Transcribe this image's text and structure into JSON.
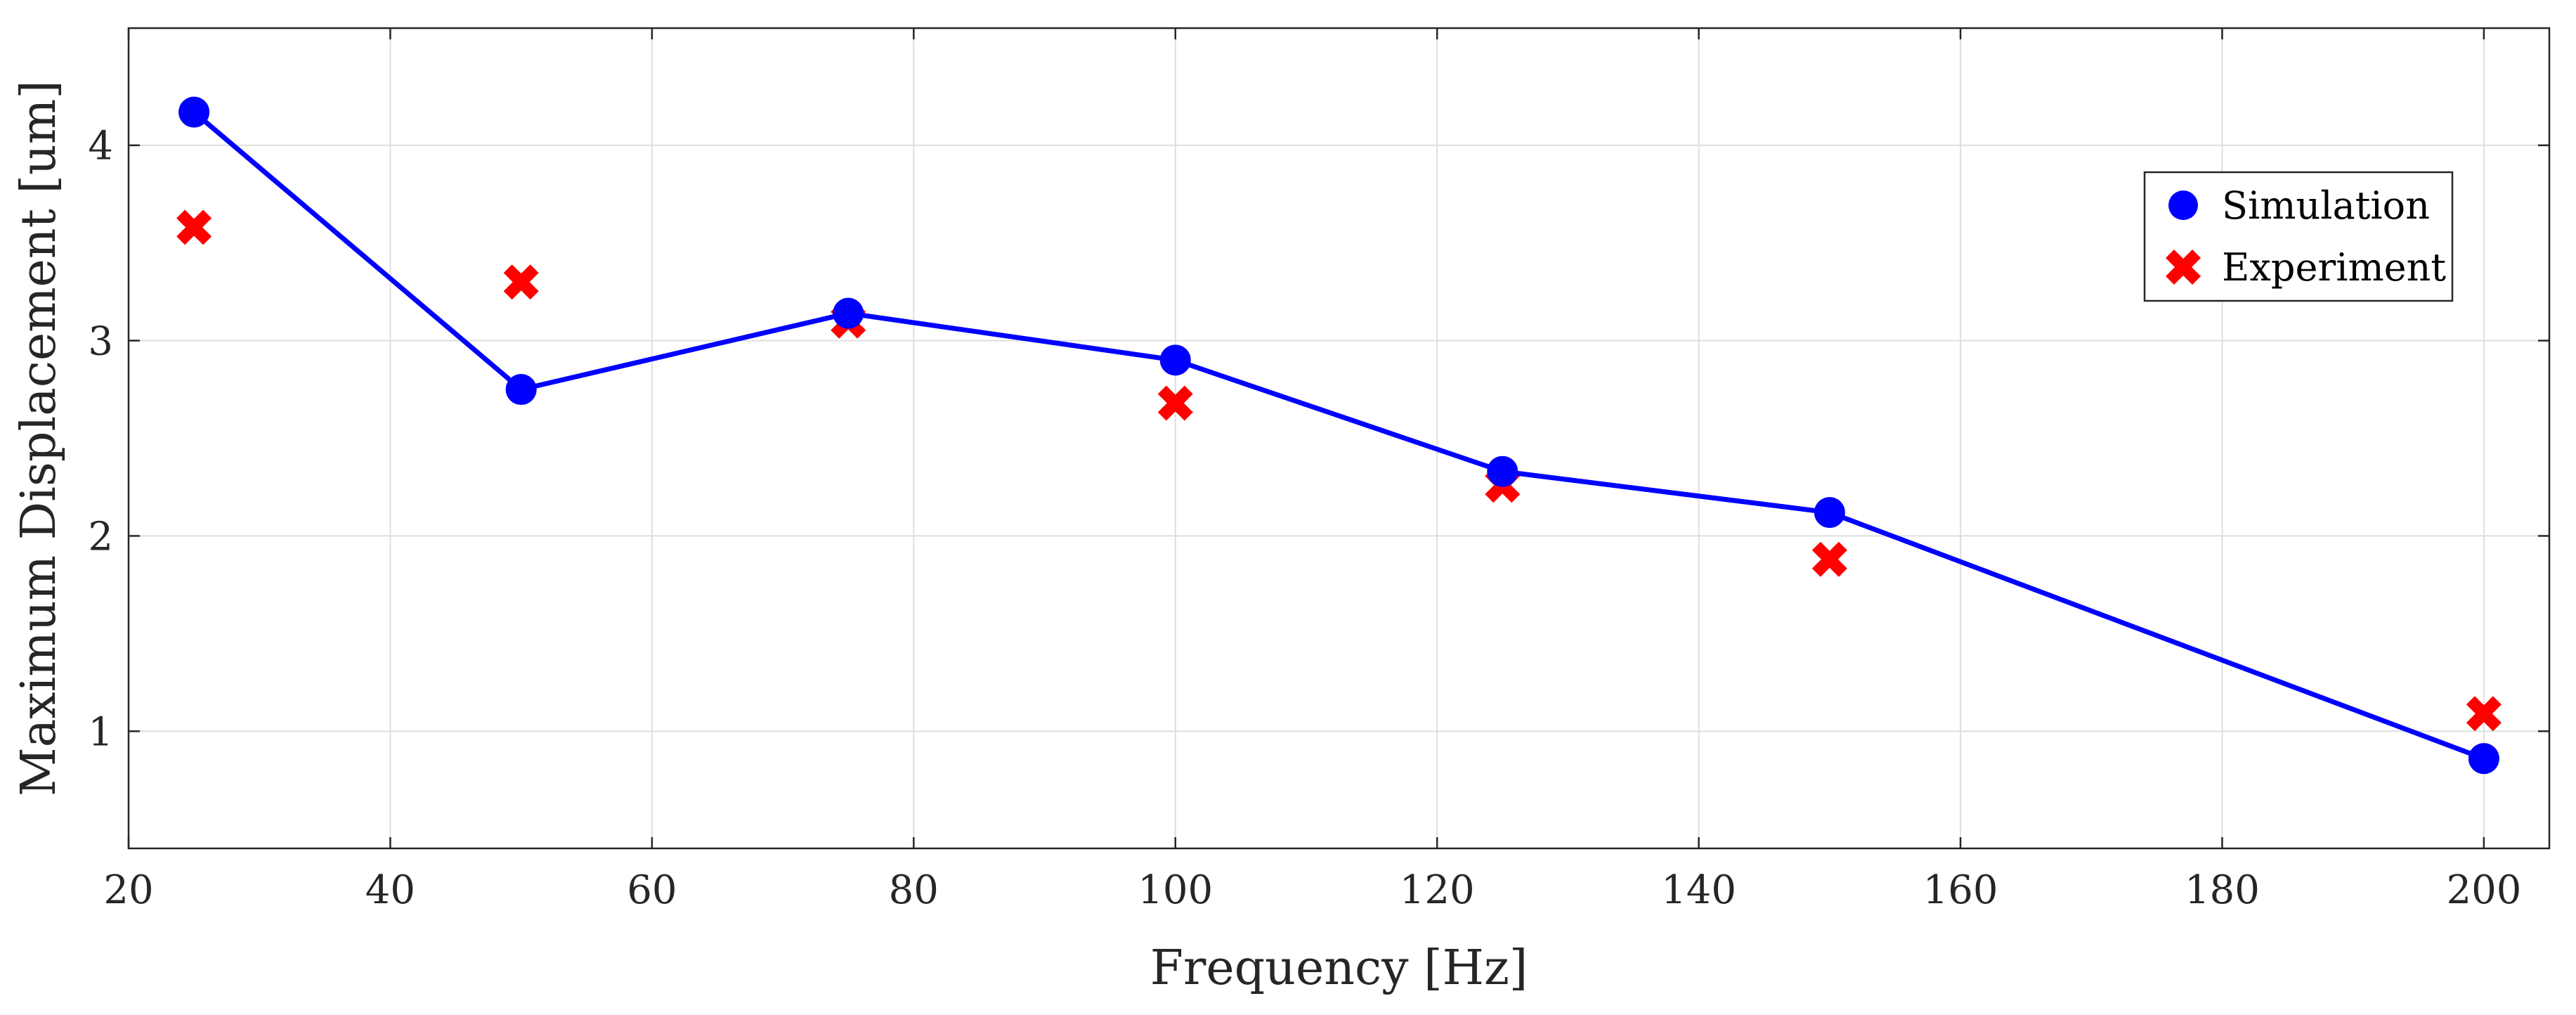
{
  "chart_data": {
    "type": "line",
    "title": "",
    "xlabel": "Frequency [Hz]",
    "ylabel": "Maximum Displacement [um]",
    "xlim": [
      20,
      205
    ],
    "ylim": [
      0.4,
      4.6
    ],
    "xticks": [
      20,
      40,
      60,
      80,
      100,
      120,
      140,
      160,
      180,
      200
    ],
    "yticks": [
      1,
      2,
      3,
      4
    ],
    "grid": true,
    "legend_position": "top-right",
    "colors": {
      "simulation": "#0000ff",
      "experiment": "#ff0000"
    },
    "series": [
      {
        "name": "Simulation",
        "marker": "circle",
        "line": true,
        "x": [
          25,
          50,
          75,
          100,
          125,
          150,
          200
        ],
        "y": [
          4.17,
          2.75,
          3.14,
          2.9,
          2.33,
          2.12,
          0.86
        ]
      },
      {
        "name": "Experiment",
        "marker": "x",
        "line": false,
        "x": [
          25,
          50,
          75,
          100,
          125,
          150,
          200
        ],
        "y": [
          3.58,
          3.3,
          3.1,
          2.68,
          2.26,
          1.88,
          1.09
        ]
      }
    ]
  }
}
